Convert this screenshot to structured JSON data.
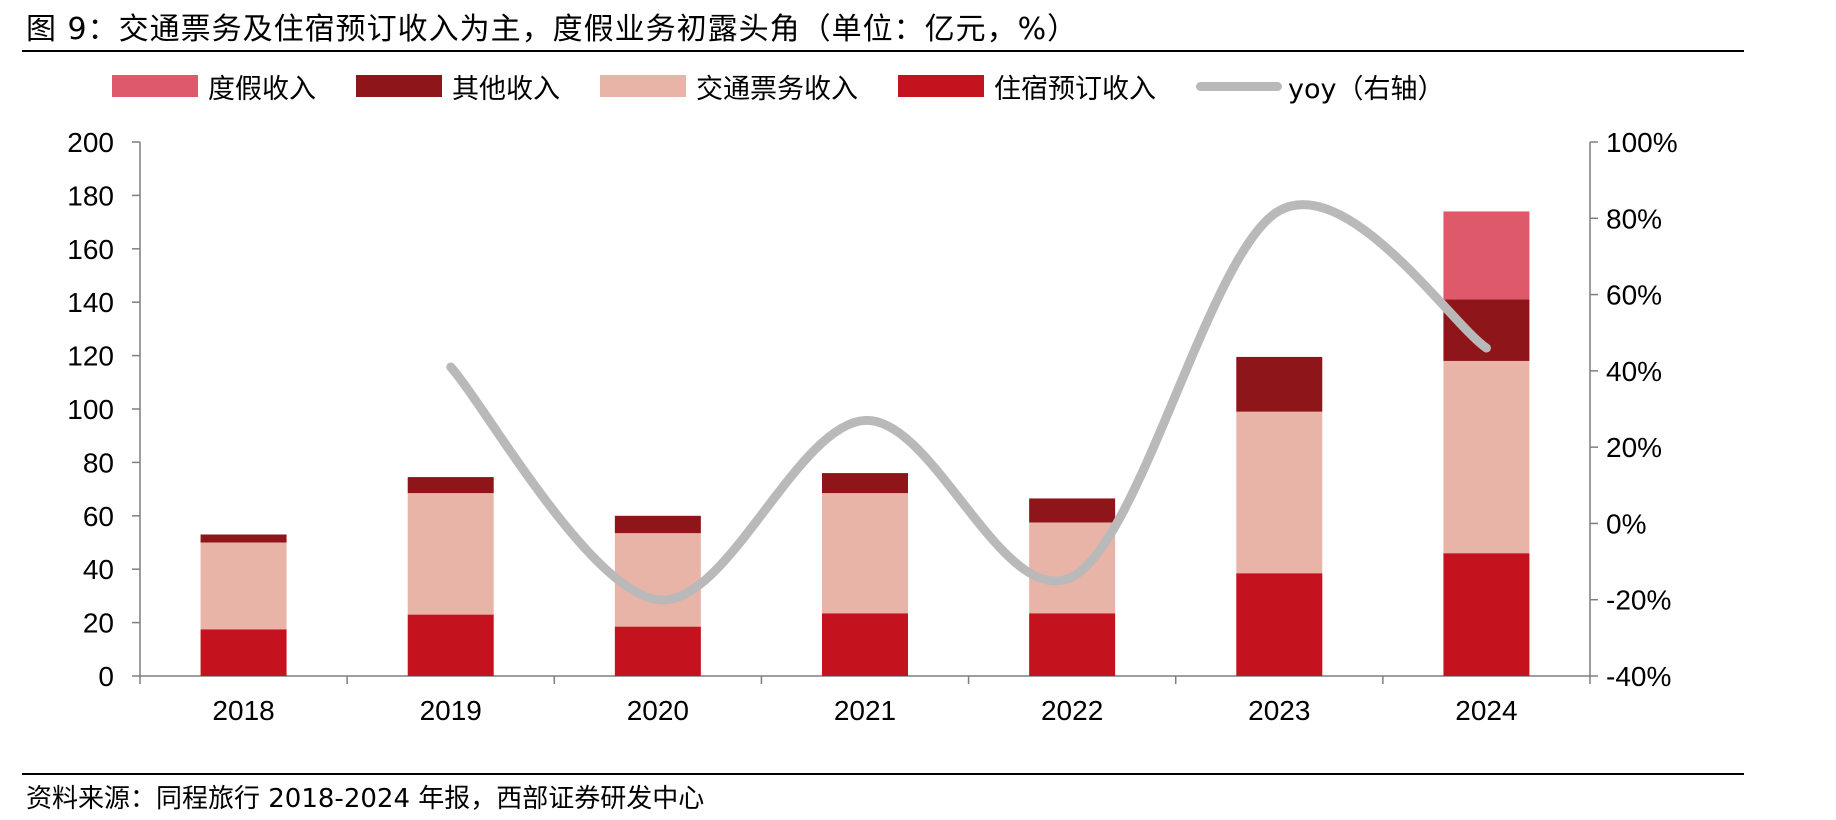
{
  "title": "图 9：交通票务及住宿预订收入为主，度假业务初露头角（单位：亿元，%）",
  "source": "资料来源：同程旅行 2018-2024 年报，西部证券研发中心",
  "chart_data": {
    "type": "bar",
    "stacked": true,
    "categories": [
      "2018",
      "2019",
      "2020",
      "2021",
      "2022",
      "2023",
      "2024"
    ],
    "series": [
      {
        "name": "住宿预订收入",
        "color": "#c4131f",
        "values": [
          17.5,
          23,
          18.5,
          23.5,
          23.5,
          38.5,
          46
        ]
      },
      {
        "name": "交通票务收入",
        "color": "#e9b4a8",
        "values": [
          32.5,
          45.5,
          35,
          45,
          34,
          60.5,
          72
        ]
      },
      {
        "name": "其他收入",
        "color": "#8e1519",
        "values": [
          3,
          6,
          6.5,
          7.5,
          9,
          20.5,
          23
        ]
      },
      {
        "name": "度假收入",
        "color": "#de5a6b",
        "values": [
          0,
          0,
          0,
          0,
          0,
          0,
          33
        ]
      }
    ],
    "line": {
      "name": "yoy（右轴）",
      "color": "#b9b9b9",
      "axis": "right",
      "x": [
        "2019",
        "2020",
        "2021",
        "2022",
        "2023",
        "2024"
      ],
      "values": [
        41,
        -20,
        27,
        -14,
        82,
        46
      ]
    },
    "legend_order": [
      "度假收入",
      "其他收入",
      "交通票务收入",
      "住宿预订收入",
      "yoy（右轴）"
    ],
    "ylim": [
      0,
      200
    ],
    "yticks": [
      "0",
      "20",
      "40",
      "60",
      "80",
      "100",
      "120",
      "140",
      "160",
      "180",
      "200"
    ],
    "y2lim": [
      -40,
      100
    ],
    "y2ticks": [
      "-40%",
      "-20%",
      "0%",
      "20%",
      "40%",
      "60%",
      "80%",
      "100%"
    ],
    "legend_position": "top",
    "grid": false
  }
}
